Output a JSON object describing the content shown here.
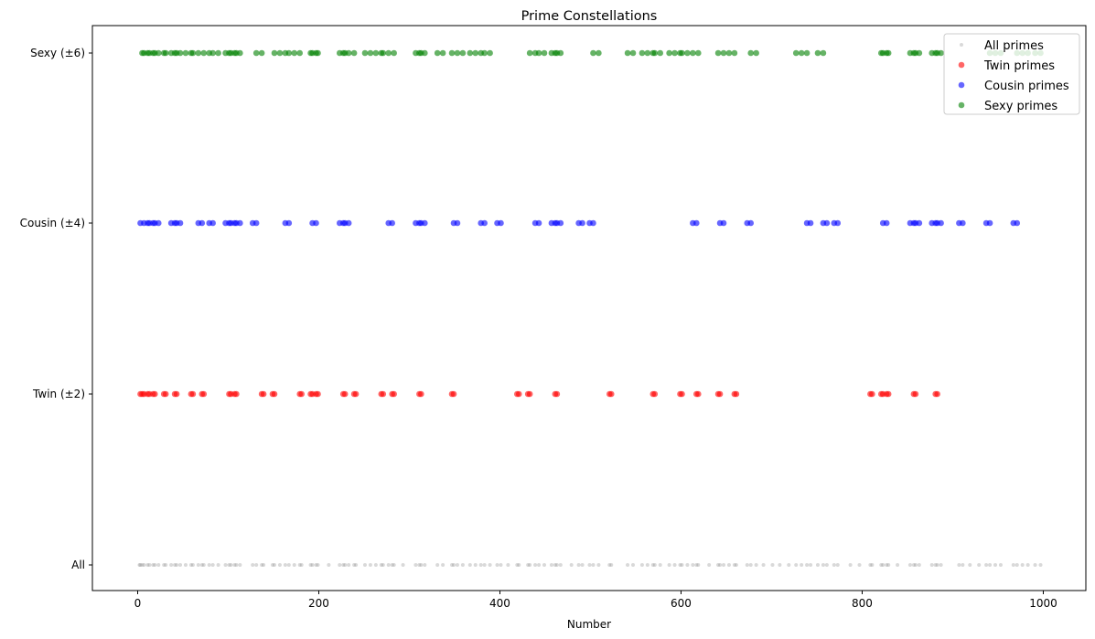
{
  "chart_data": {
    "type": "scatter",
    "title": "Prime Constellations",
    "xlabel": "Number",
    "ylabel": "",
    "xlim": [
      -50,
      1047
    ],
    "xticks": [
      0,
      200,
      400,
      600,
      800,
      1000
    ],
    "rows": [
      "All",
      "Twin (±2)",
      "Cousin (±4)",
      "Sexy (±6)"
    ],
    "grid": false,
    "legend_placement": "top-right",
    "series": [
      {
        "name": "All primes",
        "row": "All",
        "color": "#808080",
        "alpha": 0.3,
        "values": [
          2,
          3,
          5,
          7,
          11,
          13,
          17,
          19,
          23,
          29,
          31,
          37,
          41,
          43,
          47,
          53,
          59,
          61,
          67,
          71,
          73,
          79,
          83,
          89,
          97,
          101,
          103,
          107,
          109,
          113,
          127,
          131,
          137,
          139,
          149,
          151,
          157,
          163,
          167,
          173,
          179,
          181,
          191,
          193,
          197,
          199,
          211,
          223,
          227,
          229,
          233,
          239,
          241,
          251,
          257,
          263,
          269,
          271,
          277,
          281,
          283,
          293,
          307,
          311,
          313,
          317,
          331,
          337,
          347,
          349,
          353,
          359,
          367,
          373,
          379,
          383,
          389,
          397,
          401,
          409,
          419,
          421,
          431,
          433,
          439,
          443,
          449,
          457,
          461,
          463,
          467,
          479,
          487,
          491,
          499,
          503,
          509,
          521,
          523,
          541,
          547,
          557,
          563,
          569,
          571,
          577,
          587,
          593,
          599,
          601,
          607,
          613,
          617,
          619,
          631,
          641,
          643,
          647,
          653,
          659,
          661,
          673,
          677,
          683,
          691,
          701,
          709,
          719,
          727,
          733,
          739,
          743,
          751,
          757,
          761,
          769,
          773,
          787,
          797,
          809,
          811,
          821,
          823,
          827,
          829,
          839,
          853,
          857,
          859,
          863,
          877,
          881,
          883,
          887,
          907,
          911,
          919,
          929,
          937,
          941,
          947,
          953,
          967,
          971,
          977,
          983,
          991,
          997
        ]
      },
      {
        "name": "Twin primes",
        "row": "Twin (±2)",
        "color": "#ff0000",
        "alpha": 0.6,
        "values": [
          3,
          5,
          7,
          11,
          13,
          17,
          19,
          29,
          31,
          41,
          43,
          59,
          61,
          71,
          73,
          101,
          103,
          107,
          109,
          137,
          139,
          149,
          151,
          179,
          181,
          191,
          193,
          197,
          199,
          227,
          229,
          239,
          241,
          269,
          271,
          281,
          283,
          311,
          313,
          347,
          349,
          419,
          421,
          431,
          433,
          461,
          463,
          521,
          523,
          569,
          571,
          599,
          601,
          617,
          619,
          641,
          643,
          659,
          661,
          809,
          811,
          821,
          823,
          827,
          829,
          857,
          859,
          881,
          883
        ]
      },
      {
        "name": "Cousin primes",
        "row": "Cousin (±4)",
        "color": "#0000ff",
        "alpha": 0.6,
        "values": [
          3,
          7,
          11,
          13,
          17,
          19,
          23,
          37,
          41,
          43,
          47,
          67,
          71,
          79,
          83,
          97,
          101,
          103,
          107,
          109,
          113,
          127,
          131,
          163,
          167,
          193,
          197,
          223,
          227,
          229,
          233,
          277,
          281,
          307,
          311,
          313,
          317,
          349,
          353,
          379,
          383,
          397,
          401,
          439,
          443,
          457,
          461,
          463,
          467,
          487,
          491,
          499,
          503,
          613,
          617,
          643,
          647,
          673,
          677,
          739,
          743,
          757,
          761,
          769,
          773,
          823,
          827,
          853,
          857,
          859,
          863,
          877,
          881,
          883,
          887,
          907,
          911,
          937,
          941,
          967,
          971
        ]
      },
      {
        "name": "Sexy primes",
        "row": "Sexy (±6)",
        "color": "#008000",
        "alpha": 0.6,
        "values": [
          5,
          7,
          11,
          13,
          17,
          19,
          23,
          29,
          31,
          37,
          41,
          43,
          47,
          53,
          59,
          61,
          67,
          73,
          79,
          83,
          89,
          97,
          101,
          103,
          107,
          109,
          113,
          131,
          137,
          151,
          157,
          163,
          167,
          173,
          179,
          191,
          193,
          197,
          199,
          223,
          227,
          229,
          233,
          239,
          251,
          257,
          263,
          269,
          271,
          277,
          283,
          307,
          311,
          313,
          317,
          331,
          337,
          347,
          353,
          359,
          367,
          373,
          379,
          383,
          389,
          433,
          439,
          443,
          449,
          457,
          461,
          463,
          467,
          503,
          509,
          541,
          547,
          557,
          563,
          569,
          571,
          577,
          587,
          593,
          599,
          601,
          607,
          613,
          619,
          641,
          647,
          653,
          659,
          677,
          683,
          727,
          733,
          739,
          751,
          757,
          821,
          823,
          827,
          829,
          853,
          857,
          859,
          863,
          877,
          881,
          883,
          887,
          941,
          947,
          953,
          971,
          977,
          983,
          991,
          997
        ]
      }
    ]
  }
}
